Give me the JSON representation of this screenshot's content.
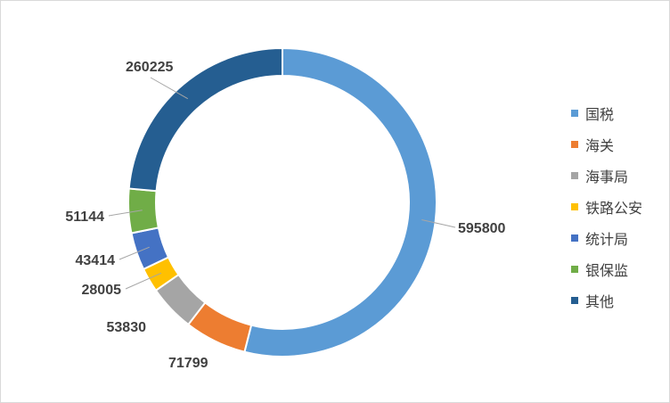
{
  "chart_data": {
    "type": "pie",
    "variant": "donut",
    "categories": [
      "国税",
      "海关",
      "海事局",
      "铁路公安",
      "统计局",
      "银保监",
      "其他"
    ],
    "values": [
      595800,
      71799,
      53830,
      28005,
      43414,
      51144,
      260225
    ],
    "colors": [
      "#5b9bd5",
      "#ed7d31",
      "#a5a5a5",
      "#ffc000",
      "#4472c4",
      "#70ad47",
      "#255e91"
    ],
    "value_labels": [
      "595800",
      "71799",
      "53830",
      "28005",
      "43414",
      "51144",
      "260225"
    ],
    "legend_position": "right",
    "title": ""
  }
}
